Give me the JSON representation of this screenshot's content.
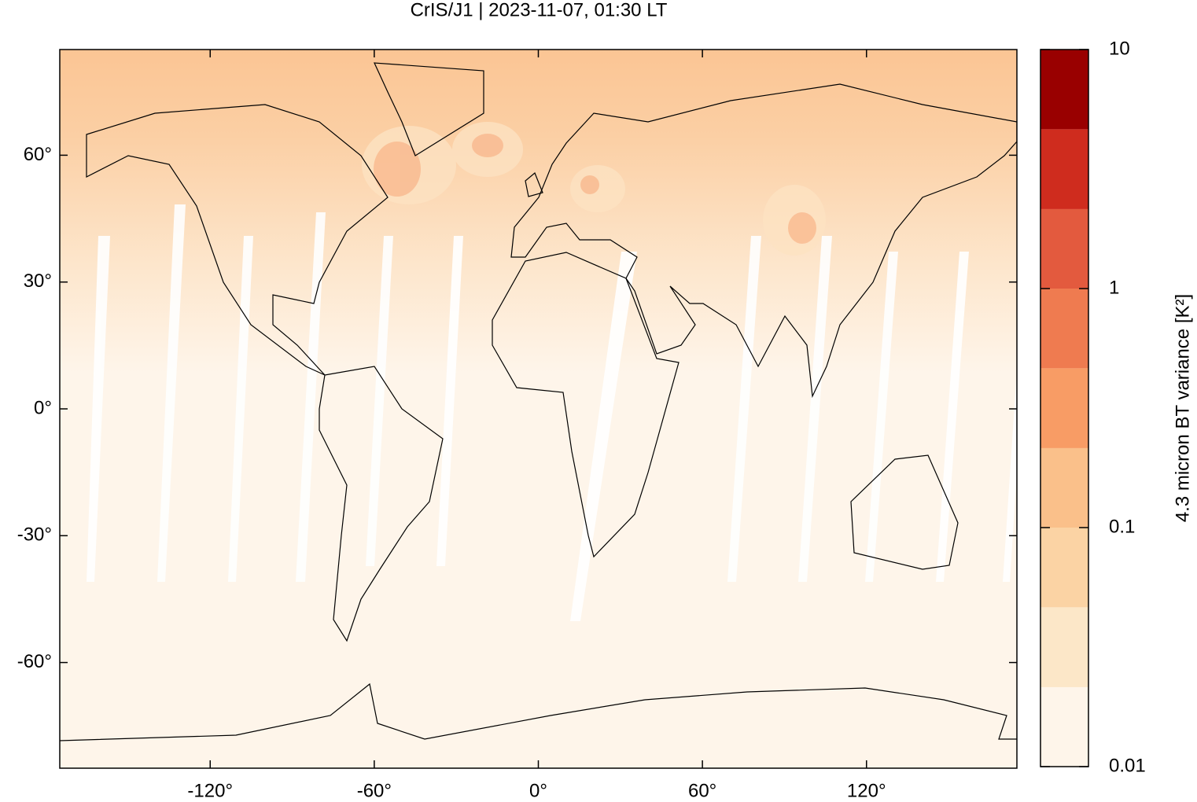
{
  "chart_data": {
    "type": "map",
    "title": "CrIS/J1 | 2023-11-07, 01:30 LT",
    "xlim": [
      -175,
      175
    ],
    "ylim": [
      -85,
      85
    ],
    "xticks": [
      {
        "value": -120,
        "label": "-120°"
      },
      {
        "value": -60,
        "label": "-60°"
      },
      {
        "value": 0,
        "label": "0°"
      },
      {
        "value": 60,
        "label": "60°"
      },
      {
        "value": 120,
        "label": "120°"
      }
    ],
    "yticks": [
      {
        "value": -60,
        "label": "-60°"
      },
      {
        "value": -30,
        "label": "-30°"
      },
      {
        "value": 0,
        "label": "0°"
      },
      {
        "value": 30,
        "label": "30°"
      },
      {
        "value": 60,
        "label": "60°"
      }
    ],
    "colorbar": {
      "label": "4.3 micron BT variance [K²]",
      "log": true,
      "lim": [
        0.01,
        10
      ],
      "ticks": [
        0.01,
        0.1,
        1,
        10
      ],
      "levels": [
        0.01,
        0.0215,
        0.0464,
        0.1,
        0.215,
        0.464,
        1,
        2.15,
        4.64,
        10
      ],
      "colors": [
        "#fef5ea",
        "#fce7c8",
        "#fbd3a4",
        "#fac08a",
        "#f89c65",
        "#ef7b50",
        "#e35a3e",
        "#cf2c1e",
        "#990000"
      ]
    }
  }
}
